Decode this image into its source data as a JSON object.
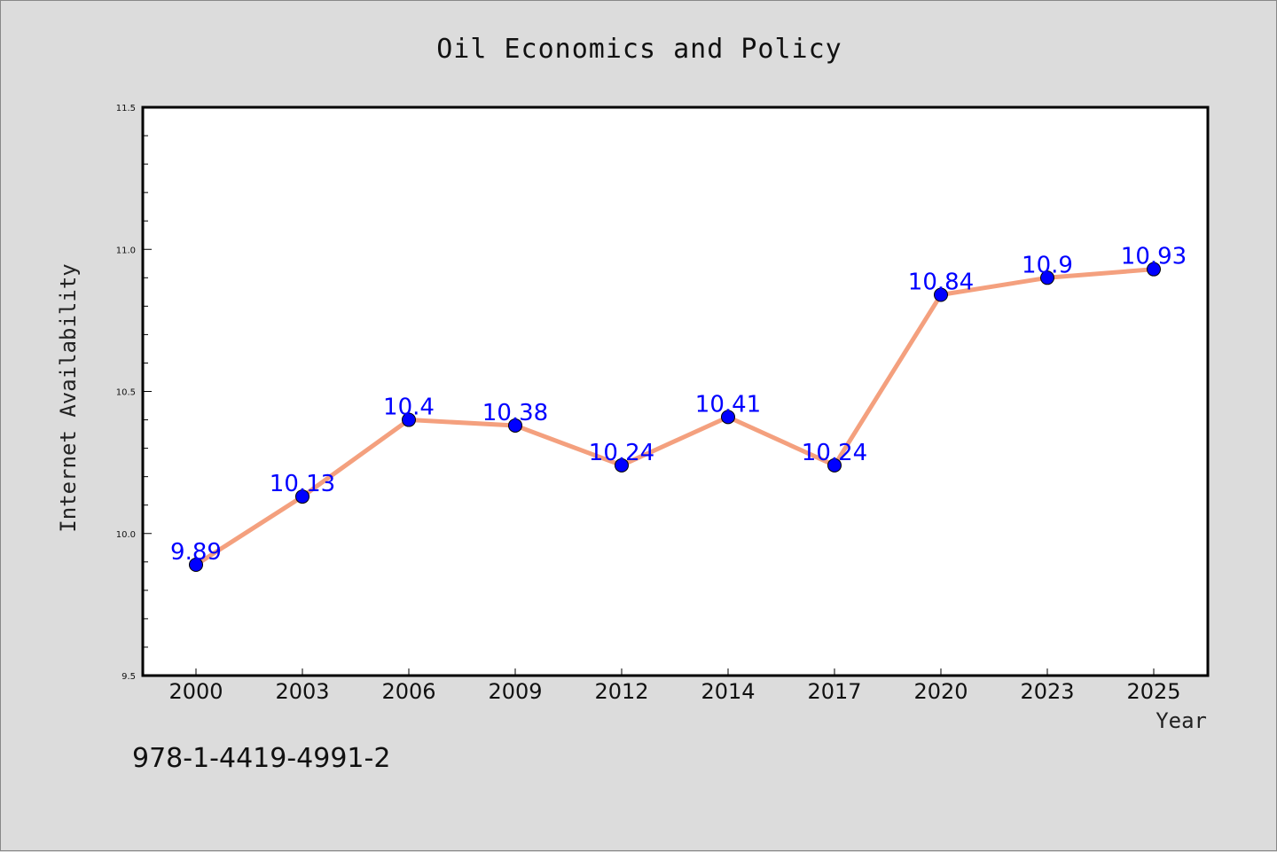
{
  "chart_data": {
    "type": "line",
    "title": "Oil Economics and Policy",
    "xlabel": "Year",
    "ylabel": "Internet Availability",
    "categories": [
      "2000",
      "2003",
      "2006",
      "2009",
      "2012",
      "2014",
      "2017",
      "2020",
      "2023",
      "2025"
    ],
    "series": [
      {
        "values": [
          9.89,
          10.13,
          10.4,
          10.38,
          10.24,
          10.41,
          10.24,
          10.84,
          10.9,
          10.93
        ],
        "labels": [
          "9.89",
          "10.13",
          "10.4",
          "10.38",
          "10.24",
          "10.41",
          "10.24",
          "10.84",
          "10.9",
          "10.93"
        ],
        "line_color": "#f4a07e",
        "marker_color": "#0000ff",
        "label_color": "#0000ff"
      }
    ],
    "ylim": [
      9.5,
      11.5
    ],
    "yticks": [
      "9.5",
      "10.0",
      "10.5",
      "11.0",
      "11.5"
    ],
    "grid": false,
    "legend": "none"
  },
  "annotation": {
    "isbn": "978-1-4419-4991-2"
  },
  "colors": {
    "background": "#dcdcdc",
    "plot_background": "#ffffff"
  }
}
